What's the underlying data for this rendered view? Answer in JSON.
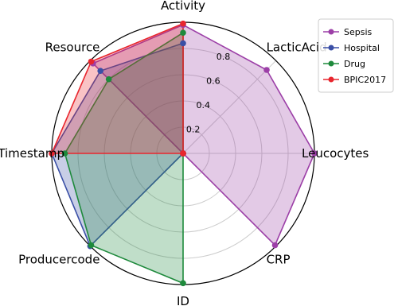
{
  "chart_data": {
    "type": "radar",
    "categories": [
      "Activity",
      "LacticAcid",
      "Leucocytes",
      "CRP",
      "ID",
      "Producercode",
      "Timestamp",
      "Resource"
    ],
    "rlim": [
      0,
      1
    ],
    "rticks": [
      0.2,
      0.4,
      0.6,
      0.8
    ],
    "grid": true,
    "legend": "upper right",
    "series": [
      {
        "name": "Sepsis",
        "color": "#9c3fa7",
        "values": [
          0.98,
          0.9,
          1.0,
          0.99,
          0,
          0,
          0,
          0.97
        ]
      },
      {
        "name": "Hospital",
        "color": "#3a4fa6",
        "values": [
          0.84,
          0,
          0,
          0,
          0,
          1.0,
          1.0,
          0.89
        ]
      },
      {
        "name": "Drug",
        "color": "#1e8a3c",
        "values": [
          0.92,
          0,
          0,
          0,
          0.99,
          0.99,
          0.9,
          0.8
        ]
      },
      {
        "name": "BPIC2017",
        "color": "#e8262e",
        "values": [
          0.99,
          0,
          0,
          0,
          0,
          0,
          1.0,
          0.99
        ]
      }
    ]
  }
}
